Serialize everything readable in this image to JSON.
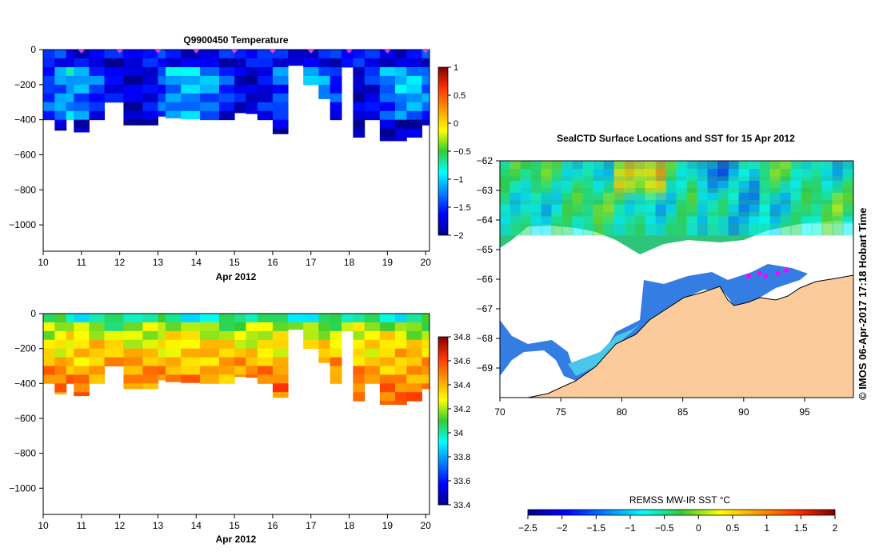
{
  "chart_data": [
    {
      "type": "heatmap",
      "title": "Q9900450  Temperature",
      "variable": "temperature",
      "xlabel": "Apr 2012",
      "xlim": [
        10,
        20.1
      ],
      "ylim": [
        -1150,
        0
      ],
      "xticks": [
        10,
        11,
        12,
        13,
        14,
        15,
        16,
        17,
        18,
        19,
        20
      ],
      "yticks": [
        0,
        -200,
        -400,
        -600,
        -800,
        -1000
      ],
      "colorbar": {
        "min": -2,
        "max": 1,
        "ticks": [
          1,
          0.5,
          0,
          -0.5,
          -1,
          -1.5,
          -2
        ]
      },
      "profile_markers_days": [
        11.0,
        12.0,
        13.0,
        14.0,
        15.0,
        16.0,
        17.0,
        18.0,
        19.0,
        20.0
      ],
      "columns_x": [
        10.0,
        10.3,
        10.6,
        10.8,
        11.2,
        11.6,
        12.1,
        12.6,
        13.0,
        13.2,
        13.6,
        14.1,
        14.6,
        15.0,
        15.3,
        15.6,
        16.0,
        16.4,
        16.8,
        17.2,
        17.5,
        17.8,
        18.1,
        18.4,
        18.8,
        19.2,
        19.5,
        19.9,
        20.1
      ],
      "column_depths": [
        -400,
        -460,
        -400,
        -470,
        -400,
        -300,
        -430,
        -430,
        -380,
        -390,
        -395,
        -400,
        -400,
        -360,
        -365,
        -400,
        -480,
        -90,
        -200,
        -280,
        -400,
        -100,
        -500,
        -400,
        -520,
        -520,
        -500,
        -430,
        -540
      ],
      "depth_levels": [
        0,
        -50,
        -100,
        -150,
        -200,
        -250,
        -300,
        -350,
        -400,
        -450,
        -500,
        -550
      ],
      "surface_value": -1.6,
      "deep_value": -1.9,
      "pattern": "cold uniform (about -1.9 to -1.5) with slightly warmer bands near -100 to -350 m"
    },
    {
      "type": "heatmap",
      "title": "",
      "variable": "salinity",
      "xlabel": "Apr 2012",
      "xlim": [
        10,
        20.1
      ],
      "ylim": [
        -1150,
        0
      ],
      "xticks": [
        10,
        11,
        12,
        13,
        14,
        15,
        16,
        17,
        18,
        19,
        20
      ],
      "yticks": [
        0,
        -200,
        -400,
        -600,
        -800,
        -1000
      ],
      "colorbar": {
        "min": 33.4,
        "max": 34.8,
        "ticks": [
          34.8,
          34.6,
          34.4,
          34.2,
          34,
          33.8,
          33.6,
          33.4
        ]
      },
      "columns_x": [
        10.0,
        10.3,
        10.6,
        10.8,
        11.2,
        11.6,
        12.1,
        12.6,
        13.0,
        13.2,
        13.6,
        14.1,
        14.6,
        15.0,
        15.3,
        15.6,
        16.0,
        16.4,
        16.8,
        17.2,
        17.5,
        17.8,
        18.1,
        18.4,
        18.8,
        19.2,
        19.5,
        19.9,
        20.1
      ],
      "column_depths": [
        -400,
        -460,
        -400,
        -470,
        -400,
        -300,
        -430,
        -430,
        -380,
        -390,
        -395,
        -400,
        -400,
        -360,
        -365,
        -400,
        -480,
        -90,
        -200,
        -280,
        -400,
        -100,
        -500,
        -400,
        -520,
        -520,
        -500,
        -430,
        -540
      ],
      "depth_levels": [
        0,
        -50,
        -100,
        -150,
        -200,
        -250,
        -300,
        -350,
        -400,
        -450,
        -500,
        -550
      ],
      "surface_value": 34.0,
      "deep_value": 34.5,
      "pattern": "fresh surface layer (about 33.9 to 34.1) over saltier water (about 34.4 to 34.6) below 100 m"
    },
    {
      "type": "heatmap",
      "title": "SealCTD Surface Locations and SST for 15 Apr 2012",
      "variable": "sea surface temperature map",
      "xlim": [
        70,
        99
      ],
      "ylim": [
        -70,
        -62
      ],
      "xticks": [
        70,
        75,
        80,
        85,
        90,
        95
      ],
      "yticks": [
        -62,
        -63,
        -64,
        -65,
        -66,
        -67,
        -68,
        -69
      ],
      "side_text": "©  IMOS 06-Apr-2017 17:18 Hobart Time",
      "colorbar": {
        "label": "REMSS MW-IR SST °C",
        "min": -2.5,
        "max": 2,
        "ticks": [
          -2.5,
          -2,
          -1.5,
          -1,
          -0.5,
          0,
          0.5,
          1,
          1.5,
          2
        ]
      },
      "seal_locations": [
        {
          "lon": 90.4,
          "lat": -65.9
        },
        {
          "lon": 91.3,
          "lat": -65.8
        },
        {
          "lon": 92.8,
          "lat": -65.8
        },
        {
          "lon": 93.5,
          "lat": -65.7
        },
        {
          "lon": 91.8,
          "lat": -65.9
        }
      ],
      "colors": {
        "land": "#fbcb9b",
        "ice": "#ffffff",
        "seal_marker": "#ff00ff",
        "coast": "#000000"
      }
    }
  ]
}
